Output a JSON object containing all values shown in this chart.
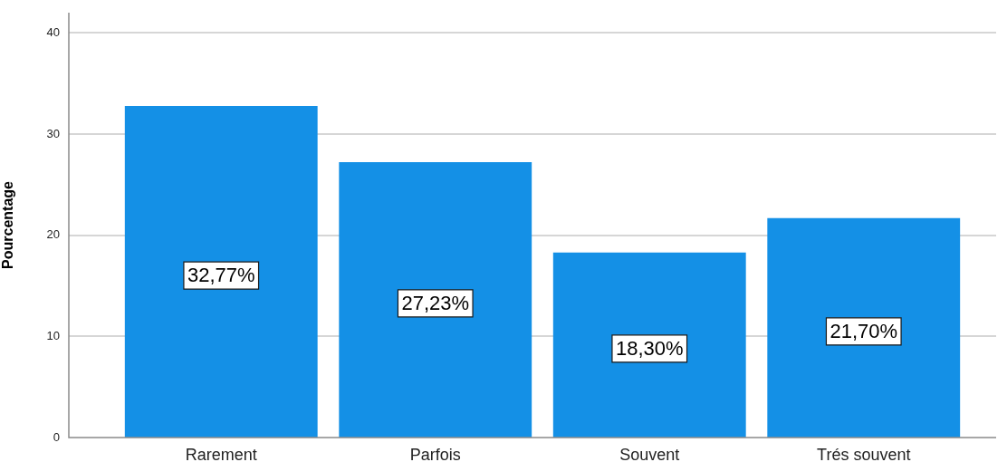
{
  "chart_data": {
    "type": "bar",
    "ylabel": "Pourcentage",
    "categories": [
      "Rarement",
      "Parfois",
      "Souvent",
      "Trés souvent"
    ],
    "values": [
      32.77,
      27.23,
      18.3,
      21.7
    ],
    "value_labels": [
      "32,77%",
      "27,23%",
      "18,30%",
      "21,70%"
    ],
    "color": "#1490e6",
    "ylim": [
      0,
      42
    ],
    "yticks": [
      0,
      10,
      20,
      30,
      40
    ],
    "grid": "y"
  }
}
